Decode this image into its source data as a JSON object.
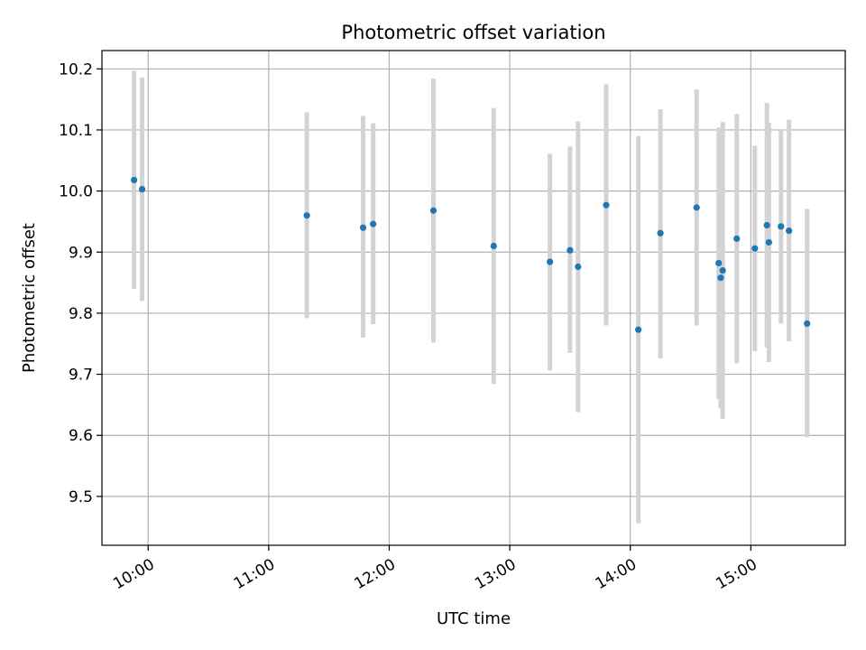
{
  "chart_data": {
    "type": "scatter",
    "title": "Photometric offset variation",
    "xlabel": "UTC time",
    "ylabel": "Photometric offset",
    "x_tick_labels": [
      "10:00",
      "11:00",
      "12:00",
      "13:00",
      "14:00",
      "15:00"
    ],
    "y_tick_labels": [
      "9.5",
      "9.6",
      "9.7",
      "9.8",
      "9.9",
      "10.0",
      "10.1",
      "10.2"
    ],
    "xlim": [
      "09:37",
      "15:47"
    ],
    "ylim": [
      9.42,
      10.23
    ],
    "grid": true,
    "legend": "none",
    "colors": {
      "point": "#1f77b4",
      "errorbar": "#d3d3d3",
      "grid": "#b0b0b0"
    },
    "series": [
      {
        "points": [
          {
            "x": "09:53",
            "y": 10.018,
            "ylow": 9.84,
            "yhigh": 10.197
          },
          {
            "x": "09:57",
            "y": 10.003,
            "ylow": 9.82,
            "yhigh": 10.186
          },
          {
            "x": "11:19",
            "y": 9.96,
            "ylow": 9.792,
            "yhigh": 10.129
          },
          {
            "x": "11:47",
            "y": 9.94,
            "ylow": 9.76,
            "yhigh": 10.123
          },
          {
            "x": "11:52",
            "y": 9.946,
            "ylow": 9.782,
            "yhigh": 10.111
          },
          {
            "x": "12:22",
            "y": 9.968,
            "ylow": 9.752,
            "yhigh": 10.184
          },
          {
            "x": "12:52",
            "y": 9.91,
            "ylow": 9.684,
            "yhigh": 10.136
          },
          {
            "x": "13:20",
            "y": 9.884,
            "ylow": 9.706,
            "yhigh": 10.061
          },
          {
            "x": "13:30",
            "y": 9.903,
            "ylow": 9.735,
            "yhigh": 10.073
          },
          {
            "x": "13:34",
            "y": 9.876,
            "ylow": 9.638,
            "yhigh": 10.114
          },
          {
            "x": "13:48",
            "y": 9.977,
            "ylow": 9.78,
            "yhigh": 10.175
          },
          {
            "x": "14:04",
            "y": 9.773,
            "ylow": 9.456,
            "yhigh": 10.09
          },
          {
            "x": "14:15",
            "y": 9.931,
            "ylow": 9.726,
            "yhigh": 10.134
          },
          {
            "x": "14:33",
            "y": 9.973,
            "ylow": 9.78,
            "yhigh": 10.166
          },
          {
            "x": "14:44",
            "y": 9.882,
            "ylow": 9.66,
            "yhigh": 10.104
          },
          {
            "x": "14:45",
            "y": 9.858,
            "ylow": 9.644,
            "yhigh": 10.072
          },
          {
            "x": "14:46",
            "y": 9.87,
            "ylow": 9.627,
            "yhigh": 10.113
          },
          {
            "x": "14:53",
            "y": 9.922,
            "ylow": 9.718,
            "yhigh": 10.126
          },
          {
            "x": "15:02",
            "y": 9.906,
            "ylow": 9.738,
            "yhigh": 10.074
          },
          {
            "x": "15:08",
            "y": 9.944,
            "ylow": 9.744,
            "yhigh": 10.144
          },
          {
            "x": "15:09",
            "y": 9.916,
            "ylow": 9.72,
            "yhigh": 10.112
          },
          {
            "x": "15:15",
            "y": 9.942,
            "ylow": 9.783,
            "yhigh": 10.101
          },
          {
            "x": "15:19",
            "y": 9.935,
            "ylow": 9.754,
            "yhigh": 10.117
          },
          {
            "x": "15:28",
            "y": 9.783,
            "ylow": 9.597,
            "yhigh": 9.971
          }
        ]
      }
    ]
  }
}
